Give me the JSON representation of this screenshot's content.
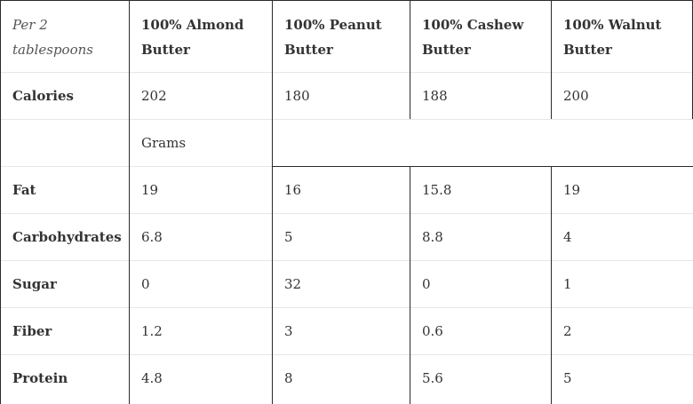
{
  "table": {
    "corner_label": "Per 2 tablespoons",
    "columns": [
      "100% Almond Butter",
      "100% Peanut Butter",
      "100% Cashew Butter",
      "100% Walnut Butter"
    ],
    "calories_row": {
      "label": "Calories",
      "values": [
        "202",
        "180",
        "188",
        "200"
      ]
    },
    "unit_row": {
      "label": "",
      "unit": "Grams"
    },
    "rows": [
      {
        "label": "Fat",
        "values": [
          "19",
          "16",
          "15.8",
          "19"
        ]
      },
      {
        "label": "Carbohydrates",
        "values": [
          "6.8",
          "5",
          "8.8",
          "4"
        ]
      },
      {
        "label": "Sugar",
        "values": [
          "0",
          "32",
          "0",
          "1"
        ]
      },
      {
        "label": "Fiber",
        "values": [
          "1.2",
          "3",
          "0.6",
          "2"
        ]
      },
      {
        "label": "Protein",
        "values": [
          "4.8",
          "8",
          "5.6",
          "5"
        ]
      }
    ]
  }
}
